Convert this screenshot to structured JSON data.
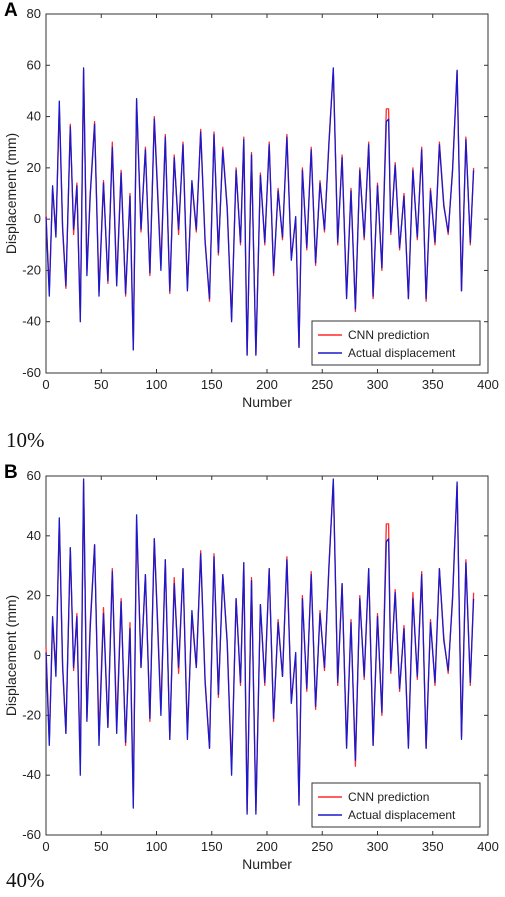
{
  "captions": [
    "10%",
    "40%"
  ],
  "chart_data": [
    {
      "type": "line",
      "panel_label": "A",
      "xlabel": "Number",
      "ylabel": "Displacement (mm)",
      "xlim": [
        0,
        400
      ],
      "ylim": [
        -60,
        80
      ],
      "xticks": [
        0,
        50,
        100,
        150,
        200,
        250,
        300,
        350,
        400
      ],
      "yticks": [
        -60,
        -40,
        -20,
        0,
        20,
        40,
        60,
        80
      ],
      "grid": false,
      "legend_position": "bottom-right",
      "series": [
        {
          "name": "CNN prediction",
          "color": "#ff2a2a",
          "x": [
            0,
            3,
            6,
            9,
            12,
            15,
            18,
            22,
            25,
            28,
            31,
            34,
            37,
            40,
            44,
            48,
            52,
            56,
            60,
            64,
            68,
            72,
            76,
            79,
            82,
            86,
            90,
            94,
            98,
            101,
            104,
            108,
            112,
            116,
            120,
            124,
            128,
            132,
            136,
            140,
            144,
            148,
            152,
            156,
            160,
            164,
            168,
            172,
            176,
            179,
            182,
            186,
            190,
            194,
            198,
            202,
            206,
            210,
            214,
            218,
            222,
            226,
            229,
            232,
            236,
            240,
            244,
            248,
            252,
            256,
            260,
            264,
            268,
            272,
            276,
            280,
            284,
            288,
            292,
            296,
            300,
            304,
            308,
            310,
            312,
            316,
            320,
            324,
            328,
            332,
            336,
            340,
            344,
            348,
            352,
            356,
            360,
            364,
            368,
            372,
            376,
            380,
            384,
            387
          ],
          "y": [
            2,
            -28,
            12,
            -6,
            44,
            -4,
            -27,
            37,
            -6,
            14,
            -39,
            58,
            -20,
            10,
            38,
            -28,
            15,
            -25,
            30,
            -24,
            19,
            -30,
            10,
            -51,
            46,
            -5,
            28,
            -22,
            40,
            12,
            -18,
            33,
            -29,
            25,
            -6,
            30,
            -27,
            14,
            -5,
            35,
            -8,
            -32,
            34,
            -14,
            28,
            5,
            -39,
            20,
            -10,
            32,
            -53,
            26,
            -53,
            18,
            -10,
            30,
            -22,
            12,
            -8,
            33,
            -15,
            0,
            -50,
            20,
            -12,
            28,
            -18,
            15,
            -5,
            30,
            58,
            -10,
            25,
            -30,
            12,
            -36,
            20,
            -8,
            30,
            -31,
            14,
            -20,
            43,
            43,
            -6,
            22,
            -12,
            10,
            -31,
            20,
            -8,
            28,
            -32,
            12,
            -10,
            30,
            6,
            -6,
            20,
            58,
            -28,
            32,
            -10,
            20
          ]
        },
        {
          "name": "Actual displacement",
          "color": "#1a1acc",
          "x": [
            0,
            3,
            6,
            9,
            12,
            15,
            18,
            22,
            25,
            28,
            31,
            34,
            37,
            40,
            44,
            48,
            52,
            56,
            60,
            64,
            68,
            72,
            76,
            79,
            82,
            86,
            90,
            94,
            98,
            101,
            104,
            108,
            112,
            116,
            120,
            124,
            128,
            132,
            136,
            140,
            144,
            148,
            152,
            156,
            160,
            164,
            168,
            172,
            176,
            179,
            182,
            186,
            190,
            194,
            198,
            202,
            206,
            210,
            214,
            218,
            222,
            226,
            229,
            232,
            236,
            240,
            244,
            248,
            252,
            256,
            260,
            264,
            268,
            272,
            276,
            280,
            284,
            288,
            292,
            296,
            300,
            304,
            308,
            310,
            312,
            316,
            320,
            324,
            328,
            332,
            336,
            340,
            344,
            348,
            352,
            356,
            360,
            364,
            368,
            372,
            376,
            380,
            384,
            387
          ],
          "y": [
            1,
            -30,
            13,
            -7,
            46,
            -3,
            -26,
            36,
            -4,
            13,
            -40,
            59,
            -22,
            9,
            37,
            -30,
            14,
            -24,
            28,
            -26,
            18,
            -29,
            9,
            -51,
            47,
            -4,
            27,
            -21,
            39,
            10,
            -20,
            32,
            -28,
            24,
            -4,
            29,
            -28,
            15,
            -4,
            34,
            -9,
            -31,
            33,
            -13,
            27,
            4,
            -40,
            19,
            -9,
            31,
            -53,
            25,
            -53,
            17,
            -9,
            29,
            -21,
            11,
            -7,
            32,
            -16,
            1,
            -50,
            19,
            -11,
            27,
            -17,
            14,
            -4,
            29,
            59,
            -9,
            24,
            -31,
            11,
            -35,
            19,
            -7,
            29,
            -30,
            13,
            -19,
            38,
            39,
            -5,
            21,
            -11,
            9,
            -31,
            19,
            -7,
            27,
            -31,
            11,
            -9,
            29,
            5,
            -5,
            19,
            58,
            -28,
            31,
            -9,
            19
          ]
        }
      ]
    },
    {
      "type": "line",
      "panel_label": "B",
      "xlabel": "Number",
      "ylabel": "Displacement (mm)",
      "xlim": [
        0,
        400
      ],
      "ylim": [
        -60,
        60
      ],
      "xticks": [
        0,
        50,
        100,
        150,
        200,
        250,
        300,
        350,
        400
      ],
      "yticks": [
        -60,
        -40,
        -20,
        0,
        20,
        40,
        60
      ],
      "grid": false,
      "legend_position": "bottom-right",
      "series": [
        {
          "name": "CNN prediction",
          "color": "#ff2a2a",
          "x": [
            0,
            3,
            6,
            9,
            12,
            15,
            18,
            22,
            25,
            28,
            31,
            34,
            37,
            40,
            44,
            48,
            52,
            56,
            60,
            64,
            68,
            72,
            76,
            79,
            82,
            86,
            90,
            94,
            98,
            101,
            104,
            108,
            112,
            116,
            120,
            124,
            128,
            132,
            136,
            140,
            144,
            148,
            152,
            156,
            160,
            164,
            168,
            172,
            176,
            179,
            182,
            186,
            190,
            194,
            198,
            202,
            206,
            210,
            214,
            218,
            222,
            226,
            229,
            232,
            236,
            240,
            244,
            248,
            252,
            256,
            260,
            264,
            268,
            272,
            276,
            280,
            284,
            288,
            292,
            296,
            300,
            304,
            308,
            310,
            312,
            316,
            320,
            324,
            328,
            332,
            336,
            340,
            344,
            348,
            352,
            356,
            360,
            364,
            368,
            372,
            376,
            380,
            384,
            387
          ],
          "y": [
            3,
            -29,
            11,
            -5,
            45,
            -4,
            -26,
            36,
            -5,
            14,
            -38,
            58,
            -21,
            11,
            37,
            -27,
            16,
            -24,
            29,
            -23,
            19,
            -30,
            11,
            -50,
            45,
            -4,
            27,
            -22,
            39,
            12,
            -18,
            32,
            -28,
            26,
            -6,
            29,
            -26,
            13,
            -4,
            35,
            -8,
            -31,
            34,
            -14,
            27,
            5,
            -38,
            19,
            -10,
            31,
            -52,
            26,
            -52,
            17,
            -10,
            29,
            -22,
            12,
            -7,
            33,
            -15,
            0,
            -49,
            20,
            -12,
            28,
            -18,
            15,
            -5,
            30,
            58,
            -10,
            24,
            -30,
            12,
            -37,
            20,
            -8,
            29,
            -30,
            14,
            -20,
            44,
            44,
            -6,
            22,
            -12,
            10,
            -30,
            21,
            -8,
            28,
            -31,
            12,
            -10,
            29,
            6,
            -6,
            20,
            57,
            -27,
            32,
            -10,
            21
          ]
        },
        {
          "name": "Actual displacement",
          "color": "#1a1acc",
          "x": [
            0,
            3,
            6,
            9,
            12,
            15,
            18,
            22,
            25,
            28,
            31,
            34,
            37,
            40,
            44,
            48,
            52,
            56,
            60,
            64,
            68,
            72,
            76,
            79,
            82,
            86,
            90,
            94,
            98,
            101,
            104,
            108,
            112,
            116,
            120,
            124,
            128,
            132,
            136,
            140,
            144,
            148,
            152,
            156,
            160,
            164,
            168,
            172,
            176,
            179,
            182,
            186,
            190,
            194,
            198,
            202,
            206,
            210,
            214,
            218,
            222,
            226,
            229,
            232,
            236,
            240,
            244,
            248,
            252,
            256,
            260,
            264,
            268,
            272,
            276,
            280,
            284,
            288,
            292,
            296,
            300,
            304,
            308,
            310,
            312,
            316,
            320,
            324,
            328,
            332,
            336,
            340,
            344,
            348,
            352,
            356,
            360,
            364,
            368,
            372,
            376,
            380,
            384,
            387
          ],
          "y": [
            1,
            -30,
            13,
            -7,
            46,
            -3,
            -26,
            36,
            -4,
            13,
            -40,
            59,
            -22,
            9,
            37,
            -30,
            14,
            -24,
            28,
            -26,
            18,
            -29,
            9,
            -51,
            47,
            -4,
            27,
            -21,
            39,
            10,
            -20,
            32,
            -28,
            24,
            -4,
            29,
            -28,
            15,
            -4,
            34,
            -9,
            -31,
            33,
            -13,
            27,
            4,
            -40,
            19,
            -9,
            31,
            -53,
            25,
            -53,
            17,
            -9,
            29,
            -21,
            11,
            -7,
            32,
            -16,
            1,
            -50,
            19,
            -11,
            27,
            -17,
            14,
            -4,
            29,
            59,
            -9,
            24,
            -31,
            11,
            -35,
            19,
            -7,
            29,
            -30,
            13,
            -19,
            38,
            39,
            -5,
            21,
            -11,
            9,
            -31,
            19,
            -7,
            27,
            -31,
            11,
            -9,
            29,
            5,
            -5,
            19,
            58,
            -28,
            31,
            -9,
            19
          ]
        }
      ]
    }
  ]
}
